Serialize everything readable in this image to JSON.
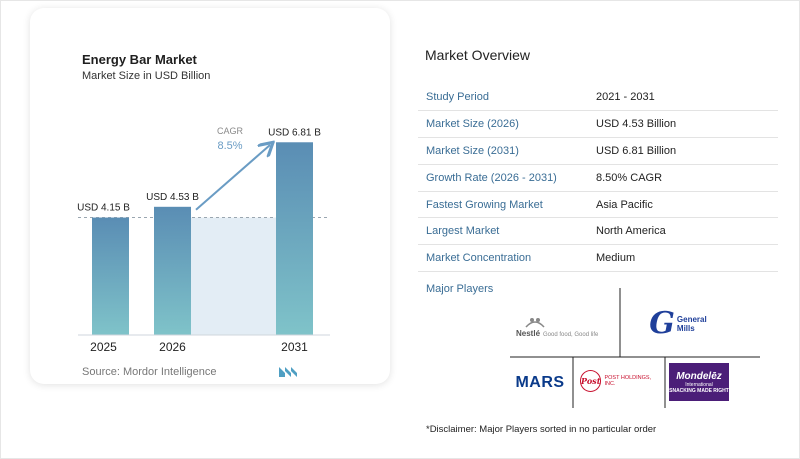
{
  "chart_data": {
    "type": "bar",
    "title": "Energy Bar Market",
    "subtitle": "Market Size in USD Billion",
    "categories": [
      "2025",
      "2026",
      "2031"
    ],
    "values": [
      4.15,
      4.53,
      6.81
    ],
    "data_labels": [
      "USD 4.15 B",
      "USD 4.53 B",
      "USD 6.81 B"
    ],
    "cagr_label": "CAGR",
    "cagr_value": "8.5%",
    "ylim": [
      0,
      7
    ],
    "grid": false,
    "colors": {
      "bar_top": "#5a8db4",
      "bar_bottom": "#7fc3c9",
      "area": "#e3edf5",
      "arrow": "#6a9cc4",
      "dashed": "#9aa6b0"
    }
  },
  "source": "Source:  Mordor Intelligence",
  "overview": {
    "title": "Market Overview",
    "rows": [
      {
        "label": "Study Period",
        "value": "2021 - 2031"
      },
      {
        "label": "Market Size (2026)",
        "value": "USD 4.53 Billion"
      },
      {
        "label": "Market Size (2031)",
        "value": "USD 6.81 Billion"
      },
      {
        "label": "Growth Rate (2026 - 2031)",
        "value": "8.50% CAGR"
      },
      {
        "label": "Fastest Growing Market",
        "value": "Asia Pacific"
      },
      {
        "label": "Largest Market",
        "value": "North America"
      },
      {
        "label": "Market Concentration",
        "value": "Medium"
      }
    ]
  },
  "major_players": {
    "title": "Major Players",
    "nestle_name": "Nestlé",
    "nestle_tagline": "Good food, Good life",
    "general_mills_line1": "General",
    "general_mills_line2": "Mills",
    "mars": "MARS",
    "post_mark": "Post",
    "post_name": "POST HOLDINGS, INC.",
    "mondelez_name": "Mondelēz",
    "mondelez_sub": "International",
    "mondelez_tag": "SNACKING MADE RIGHT"
  },
  "disclaimer": "*Disclaimer: Major Players sorted in no particular order"
}
